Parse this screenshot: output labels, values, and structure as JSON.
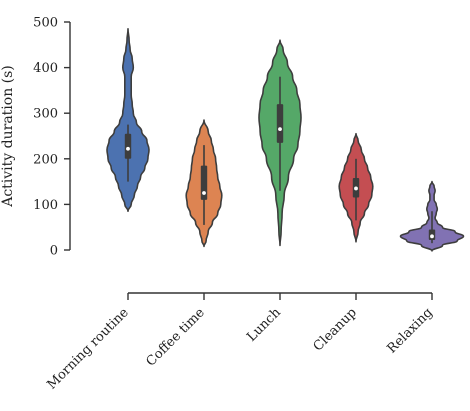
{
  "chart_data": {
    "type": "violin",
    "ylabel": "Activity duration (s)",
    "xlabel": "",
    "ylim": [
      0,
      500
    ],
    "yticks": [
      0,
      100,
      200,
      300,
      400,
      500
    ],
    "ytick_labels": [
      "0",
      "100",
      "200",
      "300",
      "400",
      "500"
    ],
    "categories": [
      "Morning routine",
      "Coffee time",
      "Lunch",
      "Cleanup",
      "Relaxing"
    ],
    "series": [
      {
        "category": "Morning routine",
        "color": "#4c72b0",
        "min": 85,
        "max": 485,
        "q1": 200,
        "median": 222,
        "q3": 255,
        "whisker_low": 150,
        "whisker_high": 275,
        "density": [
          [
            85,
            0
          ],
          [
            100,
            3
          ],
          [
            120,
            6
          ],
          [
            140,
            9
          ],
          [
            160,
            12
          ],
          [
            180,
            16
          ],
          [
            200,
            19
          ],
          [
            220,
            20
          ],
          [
            240,
            18
          ],
          [
            260,
            13
          ],
          [
            280,
            8
          ],
          [
            300,
            5
          ],
          [
            320,
            4
          ],
          [
            340,
            3
          ],
          [
            360,
            3
          ],
          [
            380,
            3
          ],
          [
            400,
            5
          ],
          [
            420,
            4
          ],
          [
            440,
            2
          ],
          [
            460,
            1
          ],
          [
            485,
            0
          ]
        ]
      },
      {
        "category": "Coffee time",
        "color": "#dd8452",
        "min": 8,
        "max": 285,
        "q1": 110,
        "median": 125,
        "q3": 185,
        "whisker_low": 55,
        "whisker_high": 230,
        "density": [
          [
            8,
            0
          ],
          [
            20,
            2
          ],
          [
            40,
            4
          ],
          [
            60,
            8
          ],
          [
            80,
            13
          ],
          [
            100,
            16
          ],
          [
            120,
            17
          ],
          [
            140,
            15
          ],
          [
            160,
            13
          ],
          [
            180,
            12
          ],
          [
            200,
            11
          ],
          [
            220,
            9
          ],
          [
            240,
            7
          ],
          [
            260,
            4
          ],
          [
            285,
            0
          ]
        ]
      },
      {
        "category": "Lunch",
        "color": "#55a868",
        "min": 10,
        "max": 460,
        "q1": 235,
        "median": 265,
        "q3": 320,
        "whisker_low": 130,
        "whisker_high": 380,
        "density": [
          [
            10,
            0
          ],
          [
            40,
            1
          ],
          [
            80,
            2
          ],
          [
            120,
            4
          ],
          [
            160,
            8
          ],
          [
            200,
            13
          ],
          [
            230,
            17
          ],
          [
            260,
            19
          ],
          [
            290,
            20
          ],
          [
            320,
            19
          ],
          [
            350,
            16
          ],
          [
            380,
            12
          ],
          [
            410,
            7
          ],
          [
            440,
            3
          ],
          [
            460,
            0
          ]
        ]
      },
      {
        "category": "Cleanup",
        "color": "#c44e52",
        "min": 18,
        "max": 255,
        "q1": 115,
        "median": 135,
        "q3": 158,
        "whisker_low": 65,
        "whisker_high": 200,
        "density": [
          [
            18,
            0
          ],
          [
            40,
            2
          ],
          [
            60,
            4
          ],
          [
            80,
            8
          ],
          [
            100,
            12
          ],
          [
            120,
            15
          ],
          [
            140,
            16
          ],
          [
            160,
            14
          ],
          [
            180,
            11
          ],
          [
            200,
            8
          ],
          [
            220,
            5
          ],
          [
            240,
            2
          ],
          [
            255,
            0
          ]
        ]
      },
      {
        "category": "Relaxing",
        "color": "#8172b3",
        "min": -2,
        "max": 150,
        "q1": 22,
        "median": 30,
        "q3": 45,
        "whisker_low": 15,
        "whisker_high": 85,
        "density": [
          [
            -2,
            0
          ],
          [
            10,
            10
          ],
          [
            20,
            24
          ],
          [
            30,
            30
          ],
          [
            40,
            22
          ],
          [
            50,
            10
          ],
          [
            60,
            5
          ],
          [
            70,
            3
          ],
          [
            80,
            4
          ],
          [
            90,
            5
          ],
          [
            100,
            4
          ],
          [
            110,
            2
          ],
          [
            120,
            2
          ],
          [
            130,
            3
          ],
          [
            140,
            2
          ],
          [
            150,
            0
          ]
        ]
      }
    ],
    "grid": false,
    "legend": "none"
  }
}
